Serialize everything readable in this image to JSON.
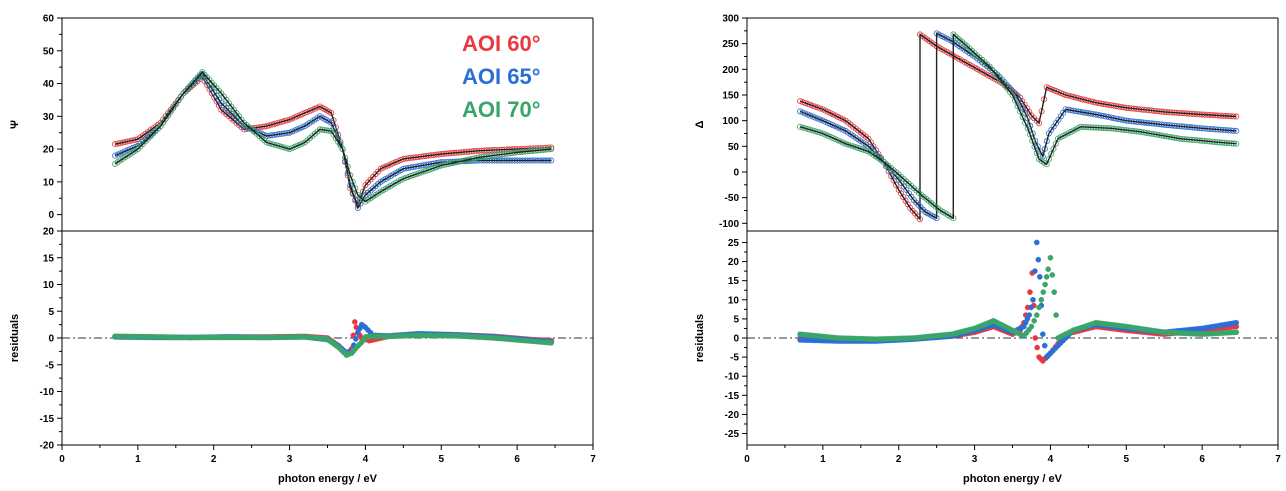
{
  "colors": {
    "aoi60": "#e8393e",
    "aoi65": "#2b6fd6",
    "aoi70": "#3aa56b",
    "fit": "#222222"
  },
  "legend": [
    "AOI  60°",
    "AOI  65°",
    "AOI  70°"
  ],
  "chart_data": [
    {
      "type": "scatter",
      "panel": "left-top",
      "xlabel": "",
      "ylabel": "Ψ",
      "xlim": [
        0,
        7
      ],
      "ylim": [
        -5,
        60
      ],
      "yticks": [
        0,
        10,
        20,
        30,
        40,
        50,
        60
      ],
      "series": [
        {
          "name": "AOI  60°",
          "color_key": "aoi60",
          "x": [
            0.7,
            1.0,
            1.3,
            1.6,
            1.85,
            2.1,
            2.4,
            2.7,
            3.0,
            3.2,
            3.4,
            3.55,
            3.7,
            3.8,
            3.9,
            4.0,
            4.2,
            4.5,
            5.0,
            5.5,
            6.0,
            6.45
          ],
          "y": [
            21.5,
            23,
            28,
            37,
            42,
            32,
            26,
            27,
            29,
            31,
            33,
            31,
            20,
            8,
            3,
            9,
            14,
            17,
            18.5,
            19.5,
            20,
            20.5
          ]
        },
        {
          "name": "AOI  65°",
          "color_key": "aoi65",
          "x": [
            0.7,
            1.0,
            1.3,
            1.6,
            1.85,
            2.1,
            2.4,
            2.7,
            3.0,
            3.2,
            3.4,
            3.55,
            3.7,
            3.8,
            3.9,
            4.0,
            4.2,
            4.5,
            5.0,
            5.5,
            6.0,
            6.45
          ],
          "y": [
            18,
            21,
            27,
            37,
            43,
            34,
            27,
            24,
            25,
            27,
            30,
            28,
            20,
            9,
            2,
            6,
            10,
            14,
            16,
            16.5,
            16.5,
            16.5
          ]
        },
        {
          "name": "AOI  70°",
          "color_key": "aoi70",
          "x": [
            0.7,
            1.0,
            1.3,
            1.6,
            1.85,
            2.1,
            2.4,
            2.7,
            3.0,
            3.2,
            3.4,
            3.55,
            3.7,
            3.8,
            3.9,
            4.0,
            4.2,
            4.5,
            5.0,
            5.5,
            6.0,
            6.45
          ],
          "y": [
            15.5,
            20,
            27,
            37,
            43.5,
            37,
            28,
            22,
            20,
            22,
            26,
            25.5,
            20,
            12,
            6,
            4,
            7,
            11,
            15,
            17.5,
            19,
            20
          ]
        }
      ]
    },
    {
      "type": "scatter",
      "panel": "left-bottom",
      "xlabel": "photon energy / eV",
      "ylabel": "residuals",
      "xlim": [
        0,
        7
      ],
      "ylim": [
        -20,
        20
      ],
      "xticks": [
        0,
        1,
        2,
        3,
        4,
        5,
        6,
        7
      ],
      "yticks": [
        -20,
        -15,
        -10,
        -5,
        0,
        5,
        10,
        15,
        20
      ],
      "series": [
        {
          "name": "AOI  60°",
          "color_key": "aoi60",
          "x": [
            0.7,
            1.2,
            1.7,
            2.2,
            2.7,
            3.2,
            3.5,
            3.65,
            3.75,
            3.82,
            3.86,
            3.9,
            3.95,
            4.05,
            4.3,
            4.7,
            5.2,
            5.7,
            6.2,
            6.45
          ],
          "y": [
            0.3,
            0.2,
            0.1,
            0.2,
            0.2,
            0.3,
            0,
            -1.5,
            -3,
            -2,
            3,
            1,
            0,
            -0.5,
            0.3,
            0.7,
            0.6,
            0.3,
            -0.3,
            -0.5
          ]
        },
        {
          "name": "AOI  65°",
          "color_key": "aoi65",
          "x": [
            0.7,
            1.2,
            1.7,
            2.2,
            2.7,
            3.2,
            3.5,
            3.65,
            3.75,
            3.82,
            3.9,
            3.95,
            4.0,
            4.1,
            4.3,
            4.7,
            5.2,
            5.7,
            6.2,
            6.45
          ],
          "y": [
            0.2,
            0.1,
            0.1,
            0.2,
            0.1,
            0.2,
            -0.3,
            -1.5,
            -2.8,
            -2.5,
            1,
            2.5,
            2,
            0.5,
            0.4,
            0.8,
            0.6,
            0.2,
            -0.4,
            -0.7
          ]
        },
        {
          "name": "AOI  70°",
          "color_key": "aoi70",
          "x": [
            0.7,
            1.2,
            1.7,
            2.2,
            2.7,
            3.2,
            3.5,
            3.65,
            3.75,
            3.82,
            3.9,
            3.95,
            4.0,
            4.1,
            4.3,
            4.7,
            5.2,
            5.7,
            6.2,
            6.45
          ],
          "y": [
            0.3,
            0.2,
            0.1,
            0.1,
            0.1,
            0.2,
            -0.2,
            -1.8,
            -3.2,
            -2.8,
            -1.5,
            -0.8,
            0.2,
            0.3,
            0.3,
            0.5,
            0.4,
            0,
            -0.6,
            -0.9
          ]
        }
      ]
    },
    {
      "type": "scatter",
      "panel": "right-top",
      "xlabel": "",
      "ylabel": "Δ",
      "xlim": [
        0,
        7
      ],
      "ylim": [
        -115,
        300
      ],
      "yticks": [
        -100,
        -50,
        0,
        50,
        100,
        150,
        200,
        250,
        300
      ],
      "series": [
        {
          "name": "AOI  60°",
          "color_key": "aoi60",
          "x": [
            0.7,
            1.0,
            1.3,
            1.6,
            1.8,
            2.0,
            2.15,
            2.28,
            2.28,
            2.5,
            2.8,
            3.1,
            3.4,
            3.6,
            3.75,
            3.85,
            3.95,
            4.2,
            4.6,
            5.0,
            5.5,
            6.0,
            6.45
          ],
          "y": [
            138,
            122,
            100,
            65,
            20,
            -35,
            -70,
            -92,
            268,
            245,
            220,
            195,
            170,
            145,
            110,
            95,
            165,
            150,
            135,
            125,
            117,
            112,
            108
          ]
        },
        {
          "name": "AOI  65°",
          "color_key": "aoi65",
          "x": [
            0.7,
            1.0,
            1.3,
            1.6,
            1.8,
            2.0,
            2.2,
            2.35,
            2.5,
            2.5,
            2.7,
            3.0,
            3.3,
            3.55,
            3.7,
            3.8,
            3.9,
            3.98,
            4.2,
            4.6,
            5.0,
            5.5,
            6.0,
            6.45
          ],
          "y": [
            118,
            100,
            80,
            50,
            20,
            -15,
            -55,
            -78,
            -90,
            270,
            255,
            225,
            190,
            150,
            105,
            60,
            30,
            75,
            122,
            112,
            100,
            92,
            85,
            80
          ]
        },
        {
          "name": "AOI  70°",
          "color_key": "aoi70",
          "x": [
            0.7,
            1.0,
            1.3,
            1.6,
            1.8,
            2.0,
            2.3,
            2.55,
            2.72,
            2.72,
            2.9,
            3.2,
            3.5,
            3.7,
            3.85,
            3.95,
            4.1,
            4.4,
            4.8,
            5.2,
            5.7,
            6.2,
            6.45
          ],
          "y": [
            88,
            75,
            55,
            40,
            20,
            -5,
            -45,
            -75,
            -90,
            268,
            245,
            205,
            150,
            85,
            25,
            15,
            65,
            88,
            85,
            78,
            65,
            58,
            55
          ]
        }
      ]
    },
    {
      "type": "scatter",
      "panel": "right-bottom",
      "xlabel": "photon energy / eV",
      "ylabel": "residuals",
      "xlim": [
        0,
        7
      ],
      "ylim": [
        -28,
        28
      ],
      "xticks": [
        0,
        1,
        2,
        3,
        4,
        5,
        6,
        7
      ],
      "yticks": [
        -25,
        -20,
        -15,
        -10,
        -5,
        0,
        5,
        10,
        15,
        20,
        25
      ],
      "series": [
        {
          "name": "AOI  60°",
          "color_key": "aoi60",
          "x": [
            0.7,
            1.2,
            1.7,
            2.2,
            2.7,
            3.0,
            3.25,
            3.5,
            3.6,
            3.65,
            3.7,
            3.73,
            3.76,
            3.8,
            3.85,
            3.9,
            4.0,
            4.2,
            4.6,
            5.0,
            5.5,
            6.0,
            6.45
          ],
          "y": [
            0,
            -0.3,
            -0.5,
            -0.2,
            0.5,
            1.5,
            3,
            1,
            2,
            4,
            8,
            12,
            17,
            0,
            -5,
            -6,
            -4,
            1,
            3,
            2,
            1,
            2,
            3
          ]
        },
        {
          "name": "AOI  65°",
          "color_key": "aoi65",
          "x": [
            0.7,
            1.2,
            1.7,
            2.2,
            2.7,
            3.0,
            3.25,
            3.5,
            3.65,
            3.72,
            3.77,
            3.82,
            3.86,
            3.9,
            3.95,
            4.0,
            4.1,
            4.3,
            4.6,
            5.0,
            5.5,
            6.0,
            6.45
          ],
          "y": [
            -0.5,
            -0.8,
            -0.8,
            -0.3,
            0.5,
            2,
            3.5,
            1.5,
            3,
            6,
            10,
            25,
            16,
            1,
            -5,
            -4,
            -2,
            2,
            3.5,
            2.5,
            1.5,
            2.5,
            4
          ]
        },
        {
          "name": "AOI  70°",
          "color_key": "aoi70",
          "x": [
            0.7,
            1.2,
            1.7,
            2.2,
            2.7,
            3.0,
            3.25,
            3.5,
            3.65,
            3.75,
            3.82,
            3.88,
            3.93,
            3.97,
            4.0,
            4.05,
            4.1,
            4.3,
            4.6,
            5.0,
            5.5,
            6.0,
            6.45
          ],
          "y": [
            1,
            0,
            -0.3,
            0,
            1,
            2.5,
            4.5,
            2,
            0.5,
            3,
            6,
            10,
            14,
            18,
            21,
            12,
            0,
            2,
            4,
            3,
            1.5,
            1,
            1.5
          ]
        }
      ]
    }
  ]
}
